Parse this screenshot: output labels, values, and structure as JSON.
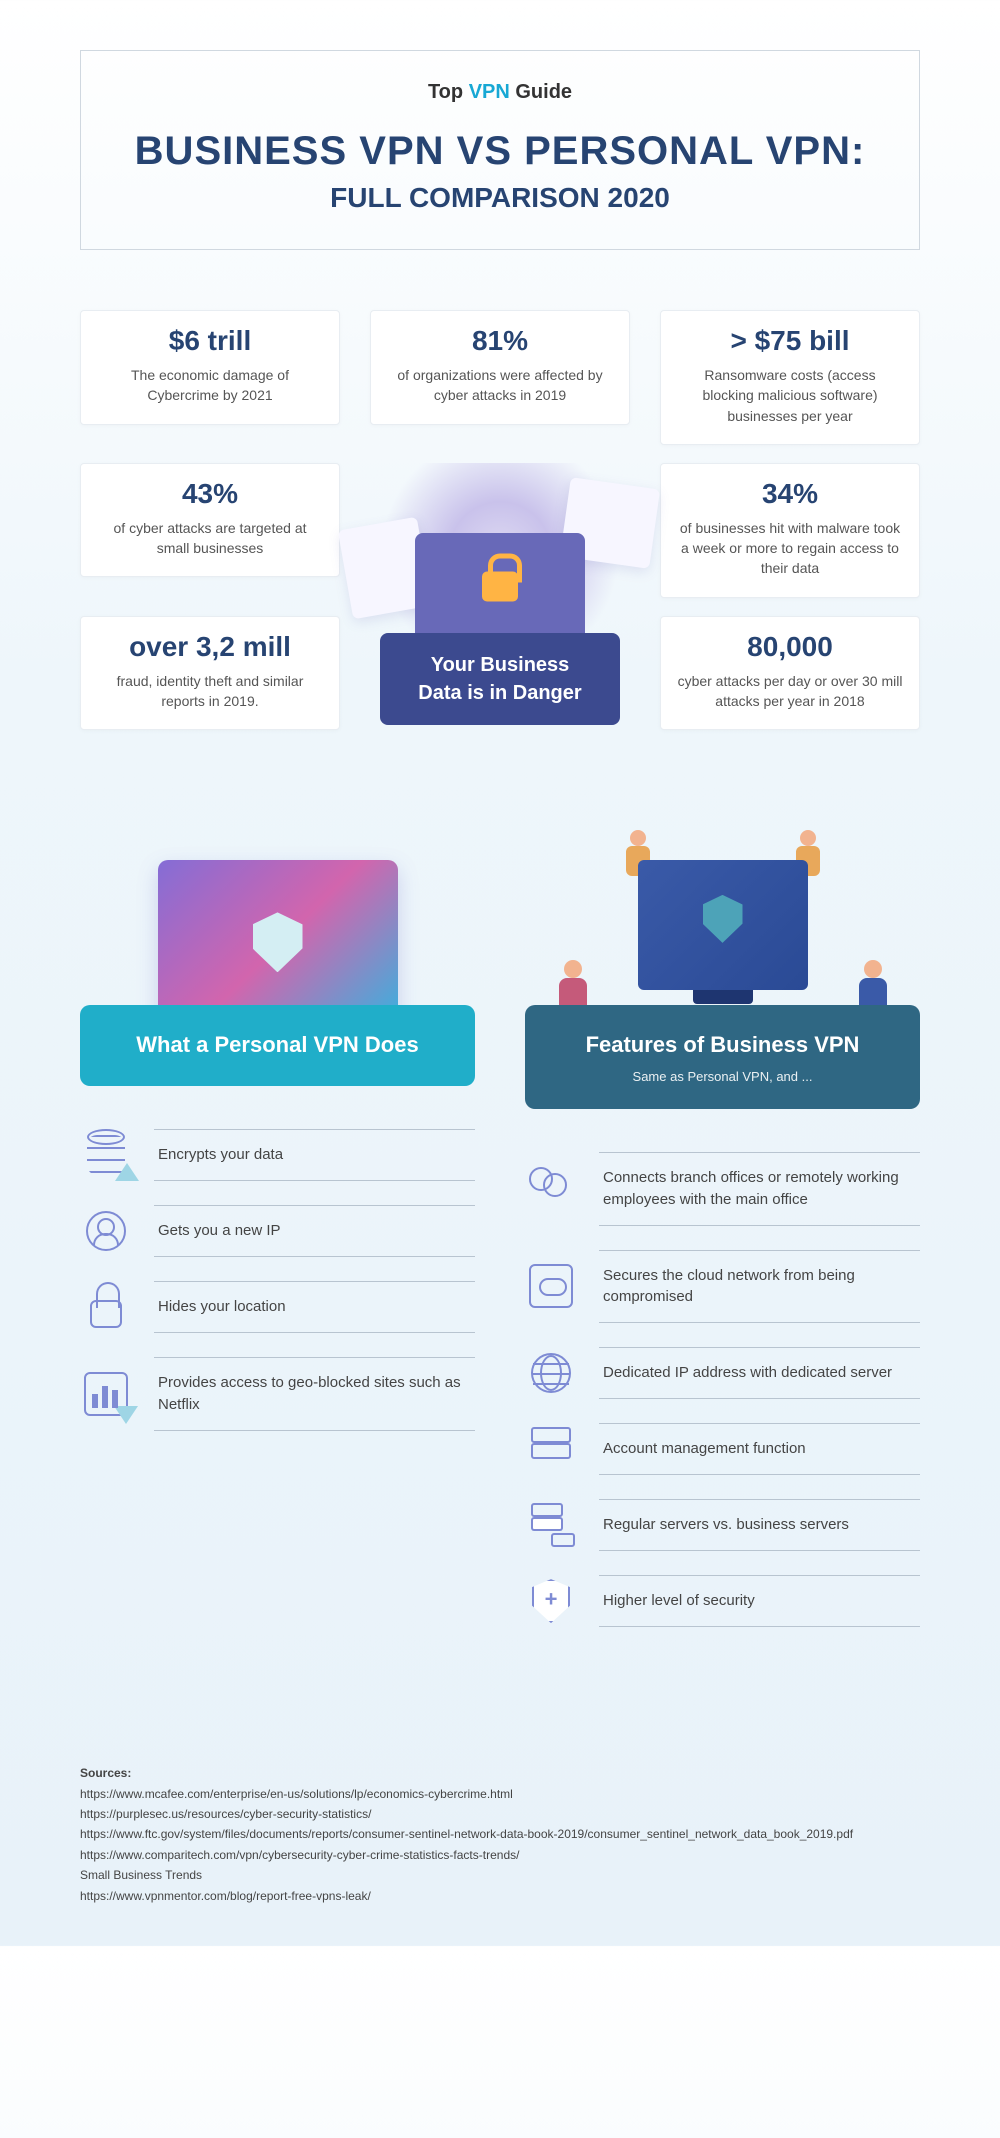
{
  "brand": {
    "top": "Top",
    "vpn": "VPN",
    "guide": "Guide"
  },
  "title": "BUSINESS VPN VS PERSONAL VPN:",
  "subtitle": "FULL COMPARISON 2020",
  "stats": {
    "topLeft": {
      "big": "$6 trill",
      "desc": "The economic damage of Cybercrime by 2021"
    },
    "topMid": {
      "big": "81%",
      "desc": "of organizations were affected by cyber attacks in 2019"
    },
    "topRight": {
      "big": "> $75 bill",
      "desc": "Ransomware costs (access blocking malicious software) businesses per year"
    },
    "midLeft": {
      "big": "43%",
      "desc": "of cyber attacks are targeted at small businesses"
    },
    "midRight": {
      "big": "34%",
      "desc": "of businesses hit with malware took a week or more to regain access to their data"
    },
    "botLeft": {
      "big": "over 3,2 mill",
      "desc": "fraud, identity theft and similar reports in 2019."
    },
    "botRight": {
      "big": "80,000",
      "desc": "cyber attacks per day or over 30 mill attacks per year in 2018"
    }
  },
  "centerLabel": "Your Business Data is in Danger",
  "personal": {
    "header": "What a Personal VPN Does",
    "features": [
      "Encrypts your data",
      "Gets you a new IP",
      "Hides your location",
      "Provides access to geo-blocked sites such as Netflix"
    ]
  },
  "business": {
    "header": "Features of Business VPN",
    "sub": "Same as Personal VPN, and ...",
    "features": [
      "Connects branch offices or remotely working employees with the main office",
      "Secures the cloud network from being compromised",
      "Dedicated IP address with dedicated server",
      "Account management function",
      "Regular servers vs. business servers",
      "Higher level of security"
    ]
  },
  "sources": {
    "label": "Sources:",
    "list": [
      "https://www.mcafee.com/enterprise/en-us/solutions/lp/economics-cybercrime.html",
      "https://purplesec.us/resources/cyber-security-statistics/",
      "https://www.ftc.gov/system/files/documents/reports/consumer-sentinel-network-data-book-2019/consumer_sentinel_network_data_book_2019.pdf",
      "https://www.comparitech.com/vpn/cybersecurity-cyber-crime-statistics-facts-trends/",
      "Small Business Trends",
      "https://www.vpnmentor.com/blog/report-free-vpns-leak/"
    ]
  },
  "colors": {
    "primary": "#274472",
    "accentTeal": "#20aec9",
    "accentBlue": "#2f6783",
    "centerBox": "#3c4a8f",
    "iconStroke": "#7e8bd4"
  }
}
